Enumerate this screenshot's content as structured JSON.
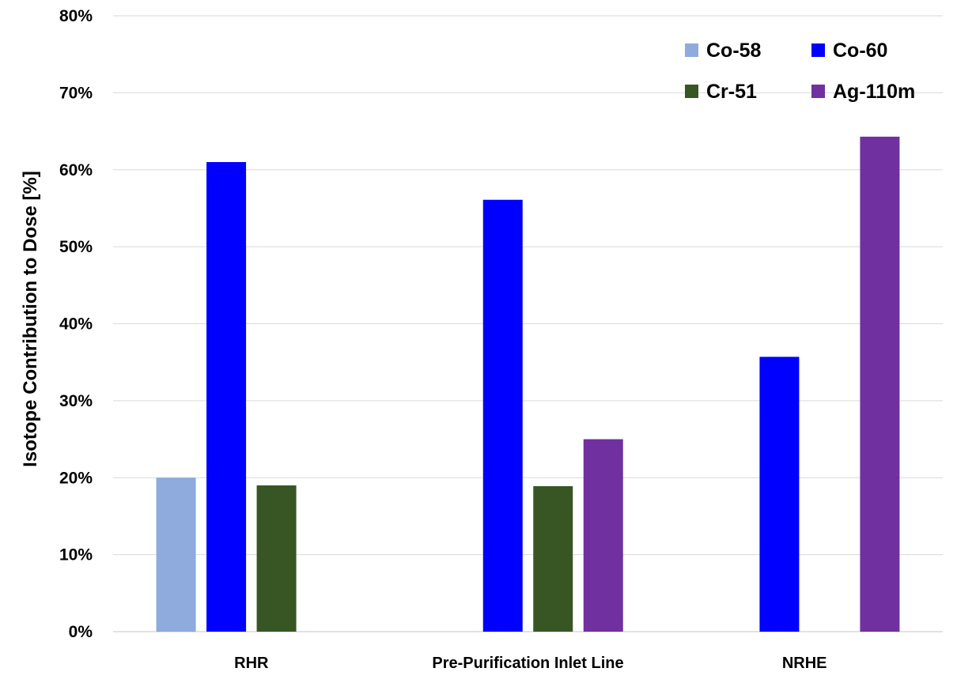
{
  "chart_data": {
    "type": "bar",
    "title": "",
    "xlabel": "",
    "ylabel": "Isotope Contribution to Dose [%]",
    "ylim": [
      0,
      80
    ],
    "yticks": [
      0,
      10,
      20,
      30,
      40,
      50,
      60,
      70,
      80
    ],
    "ytick_labels": [
      "0%",
      "10%",
      "20%",
      "30%",
      "40%",
      "50%",
      "60%",
      "70%",
      "80%"
    ],
    "y_unit": "%",
    "grid": true,
    "legend_position": "top-right",
    "categories": [
      "RHR",
      "Pre-Purification Inlet Line",
      "NRHE"
    ],
    "series": [
      {
        "name": "Co-58",
        "color": "#8faadc",
        "values": [
          20,
          null,
          null
        ]
      },
      {
        "name": "Co-60",
        "color": "#0000ff",
        "values": [
          61,
          56.1,
          35.7
        ]
      },
      {
        "name": "Cr-51",
        "color": "#375623",
        "values": [
          19,
          18.9,
          null
        ]
      },
      {
        "name": "Ag-110m",
        "color": "#7030a0",
        "values": [
          null,
          25,
          64.3
        ]
      }
    ]
  }
}
